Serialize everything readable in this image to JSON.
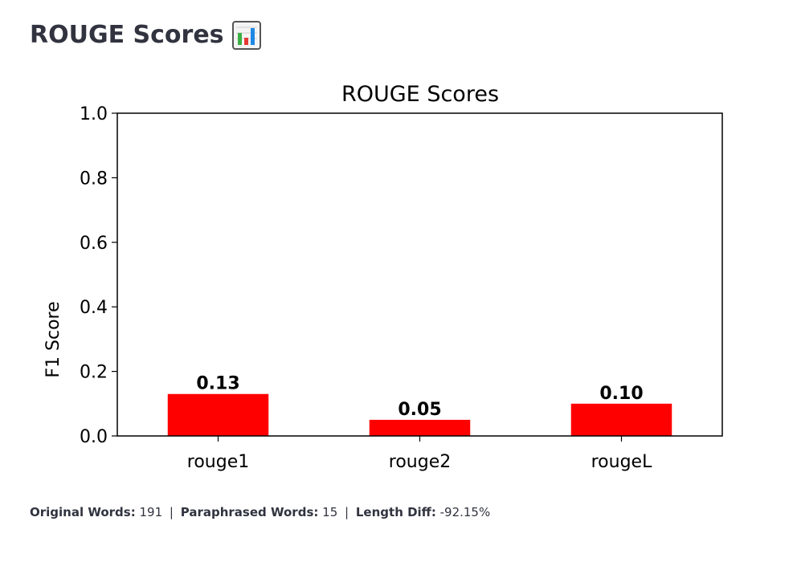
{
  "page": {
    "heading": "ROUGE Scores",
    "heading_icon": "bar-chart-icon"
  },
  "chart_data": {
    "type": "bar",
    "title": "ROUGE Scores",
    "xlabel": "",
    "ylabel": "F1 Score",
    "categories": [
      "rouge1",
      "rouge2",
      "rougeL"
    ],
    "values": [
      0.13,
      0.05,
      0.1
    ],
    "data_labels": [
      "0.13",
      "0.05",
      "0.10"
    ],
    "ylim": [
      0,
      1.0
    ],
    "yticks": [
      0.0,
      0.2,
      0.4,
      0.6,
      0.8,
      1.0
    ],
    "ytick_labels": [
      "0.0",
      "0.2",
      "0.4",
      "0.6",
      "0.8",
      "1.0"
    ],
    "bar_color": "#ff0000",
    "grid": false,
    "legend": "none"
  },
  "stats": {
    "original_label": "Original Words:",
    "original_value": "191",
    "paraphrased_label": "Paraphrased Words:",
    "paraphrased_value": "15",
    "length_diff_label": "Length Diff:",
    "length_diff_value": "-92.15%",
    "separator": "|"
  }
}
